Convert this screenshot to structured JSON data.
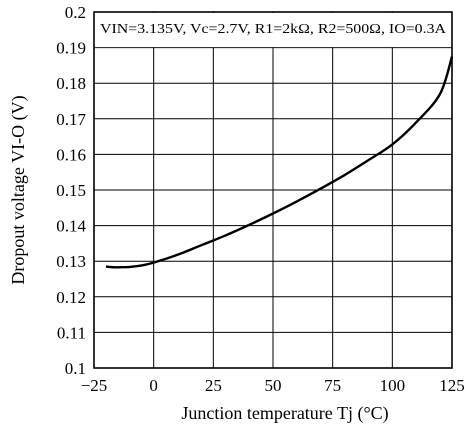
{
  "chart_data": {
    "type": "line",
    "title": "",
    "xlabel": "Junction temperature Tj (°C)",
    "ylabel": "Dropout voltage VI-O (V)",
    "annotation": "VIN=3.135V, Vc=2.7V, R1=2kΩ, R2=500Ω, IO=0.3A",
    "xlim": [
      -25,
      125
    ],
    "ylim": [
      0.1,
      0.2
    ],
    "grid": true,
    "x_ticks": [
      -25,
      0,
      25,
      50,
      75,
      100,
      125
    ],
    "x_tick_labels": [
      "−25",
      "0",
      "25",
      "50",
      "75",
      "100",
      "125"
    ],
    "y_ticks": [
      0.1,
      0.11,
      0.12,
      0.13,
      0.14,
      0.15,
      0.16,
      0.17,
      0.18,
      0.19,
      0.2
    ],
    "y_tick_labels": [
      "0.1",
      "0.11",
      "0.12",
      "0.13",
      "0.14",
      "0.15",
      "0.16",
      "0.17",
      "0.18",
      "0.19",
      "0.2"
    ],
    "series": [
      {
        "x": [
          -20,
          -17,
          -14,
          -10,
          -5,
          0,
          10,
          20,
          30,
          40,
          50,
          60,
          70,
          80,
          90,
          100,
          110,
          120,
          125
        ],
        "y": [
          0.1285,
          0.1283,
          0.1283,
          0.1284,
          0.1288,
          0.1296,
          0.1318,
          0.1345,
          0.1372,
          0.1402,
          0.1434,
          0.1468,
          0.1504,
          0.1542,
          0.1584,
          0.1628,
          0.169,
          0.177,
          0.1875
        ]
      }
    ]
  }
}
